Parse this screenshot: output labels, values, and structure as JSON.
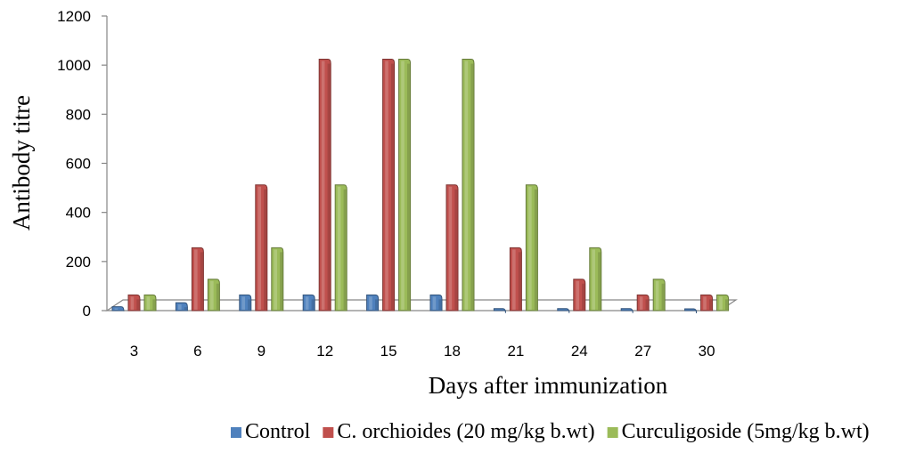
{
  "chart_data": {
    "type": "bar",
    "style": "3d-clustered",
    "categories": [
      "3",
      "6",
      "9",
      "12",
      "15",
      "18",
      "21",
      "24",
      "27",
      "30"
    ],
    "series": [
      {
        "name": "Control",
        "color": "#4f81bd",
        "values": [
          16,
          32,
          64,
          64,
          64,
          64,
          8,
          8,
          8,
          2
        ]
      },
      {
        "name": "C. orchioides (20 mg/kg b.wt)",
        "color": "#c0504d",
        "values": [
          64,
          256,
          512,
          1024,
          1024,
          512,
          256,
          128,
          64,
          64
        ]
      },
      {
        "name": "Curculigoside (5mg/kg b.wt)",
        "color": "#9bbb59",
        "values": [
          64,
          128,
          256,
          512,
          1024,
          1024,
          512,
          256,
          128,
          64
        ]
      }
    ],
    "xlabel": "Days after immunization",
    "ylabel": "Antibody titre",
    "ylim": [
      0,
      1200
    ],
    "yticks": [
      0,
      200,
      400,
      600,
      800,
      1000,
      1200
    ],
    "grid": false,
    "legend_position": "bottom"
  }
}
